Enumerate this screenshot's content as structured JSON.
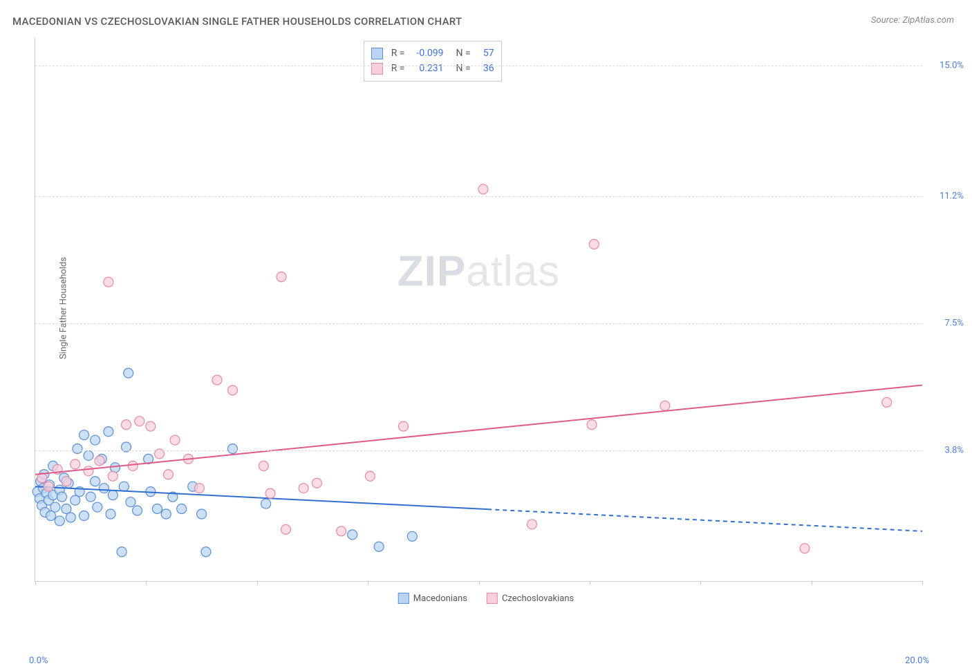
{
  "title": "MACEDONIAN VS CZECHOSLOVAKIAN SINGLE FATHER HOUSEHOLDS CORRELATION CHART",
  "source_label": "Source:",
  "source_name": "ZipAtlas.com",
  "ylabel": "Single Father Households",
  "watermark_bold": "ZIP",
  "watermark_light": "atlas",
  "chart": {
    "type": "scatter",
    "xlim": [
      0,
      20
    ],
    "ylim": [
      0,
      15.8
    ],
    "x_tick_positions": [
      0,
      2.5,
      5,
      7.5,
      10,
      12.5,
      15,
      17.5,
      20
    ],
    "x_label_min": "0.0%",
    "x_label_max": "20.0%",
    "y_ticks": [
      {
        "v": 3.8,
        "label": "3.8%"
      },
      {
        "v": 7.5,
        "label": "7.5%"
      },
      {
        "v": 11.2,
        "label": "11.2%"
      },
      {
        "v": 15.0,
        "label": "15.0%"
      }
    ],
    "grid_color": "#dddddd",
    "axis_color": "#cccccc",
    "background_color": "#ffffff",
    "marker_radius": 7,
    "marker_stroke_width": 1.2,
    "line_width": 2,
    "series": [
      {
        "name": "Macedonians",
        "fill": "#bcd5f2",
        "stroke": "#5a8fd6",
        "line_color": "#2f6fd0",
        "R_label": "R =",
        "R": "-0.099",
        "N_label": "N =",
        "N": "57",
        "trend": {
          "x1": 0,
          "y1": 2.75,
          "x2": 20,
          "y2": 1.45,
          "solid_until_x": 10.2
        },
        "points": [
          [
            0.05,
            2.6
          ],
          [
            0.1,
            2.4
          ],
          [
            0.12,
            2.9
          ],
          [
            0.15,
            2.2
          ],
          [
            0.18,
            2.7
          ],
          [
            0.2,
            3.1
          ],
          [
            0.22,
            2.0
          ],
          [
            0.25,
            2.55
          ],
          [
            0.3,
            2.35
          ],
          [
            0.32,
            2.8
          ],
          [
            0.35,
            1.9
          ],
          [
            0.4,
            3.35
          ],
          [
            0.4,
            2.5
          ],
          [
            0.45,
            2.15
          ],
          [
            0.55,
            2.65
          ],
          [
            0.55,
            1.75
          ],
          [
            0.6,
            2.45
          ],
          [
            0.65,
            3.0
          ],
          [
            0.7,
            2.1
          ],
          [
            0.75,
            2.85
          ],
          [
            0.8,
            1.85
          ],
          [
            0.9,
            2.35
          ],
          [
            0.95,
            3.85
          ],
          [
            1.0,
            2.6
          ],
          [
            1.1,
            4.25
          ],
          [
            1.1,
            1.9
          ],
          [
            1.2,
            3.65
          ],
          [
            1.25,
            2.45
          ],
          [
            1.35,
            4.1
          ],
          [
            1.35,
            2.9
          ],
          [
            1.4,
            2.15
          ],
          [
            1.5,
            3.55
          ],
          [
            1.55,
            2.7
          ],
          [
            1.65,
            4.35
          ],
          [
            1.7,
            1.95
          ],
          [
            1.75,
            2.5
          ],
          [
            1.8,
            3.3
          ],
          [
            1.95,
            0.85
          ],
          [
            2.0,
            2.75
          ],
          [
            2.05,
            3.9
          ],
          [
            2.1,
            6.05
          ],
          [
            2.15,
            2.3
          ],
          [
            2.3,
            2.05
          ],
          [
            2.55,
            3.55
          ],
          [
            2.6,
            2.6
          ],
          [
            2.75,
            2.1
          ],
          [
            2.95,
            1.95
          ],
          [
            3.1,
            2.45
          ],
          [
            3.3,
            2.1
          ],
          [
            3.55,
            2.75
          ],
          [
            3.75,
            1.95
          ],
          [
            3.85,
            0.85
          ],
          [
            4.45,
            3.85
          ],
          [
            5.2,
            2.25
          ],
          [
            7.15,
            1.35
          ],
          [
            7.75,
            1.0
          ],
          [
            8.5,
            1.3
          ]
        ]
      },
      {
        "name": "Czechoslovakians",
        "fill": "#f7d0db",
        "stroke": "#e48aa4",
        "line_color": "#e05a87",
        "R_label": "R =",
        "R": "0.231",
        "N_label": "N =",
        "N": "36",
        "trend": {
          "x1": 0,
          "y1": 3.1,
          "x2": 20,
          "y2": 5.7,
          "solid_until_x": 20
        },
        "points": [
          [
            0.15,
            3.0
          ],
          [
            0.3,
            2.75
          ],
          [
            0.5,
            3.25
          ],
          [
            0.7,
            2.9
          ],
          [
            0.9,
            3.4
          ],
          [
            1.2,
            3.2
          ],
          [
            1.45,
            3.5
          ],
          [
            1.65,
            8.7
          ],
          [
            1.75,
            3.05
          ],
          [
            2.05,
            4.55
          ],
          [
            2.2,
            3.35
          ],
          [
            2.35,
            4.65
          ],
          [
            2.6,
            4.5
          ],
          [
            2.8,
            3.7
          ],
          [
            3.0,
            3.1
          ],
          [
            3.15,
            4.1
          ],
          [
            3.45,
            3.55
          ],
          [
            3.7,
            2.7
          ],
          [
            4.1,
            5.85
          ],
          [
            4.45,
            5.55
          ],
          [
            5.15,
            3.35
          ],
          [
            5.3,
            2.55
          ],
          [
            5.55,
            8.85
          ],
          [
            5.65,
            1.5
          ],
          [
            6.05,
            2.7
          ],
          [
            6.35,
            2.85
          ],
          [
            6.9,
            1.45
          ],
          [
            7.55,
            3.05
          ],
          [
            8.3,
            4.5
          ],
          [
            10.1,
            11.4
          ],
          [
            11.2,
            1.65
          ],
          [
            12.55,
            4.55
          ],
          [
            12.6,
            9.8
          ],
          [
            14.2,
            5.1
          ],
          [
            17.35,
            0.95
          ],
          [
            19.2,
            5.2
          ]
        ]
      }
    ]
  }
}
